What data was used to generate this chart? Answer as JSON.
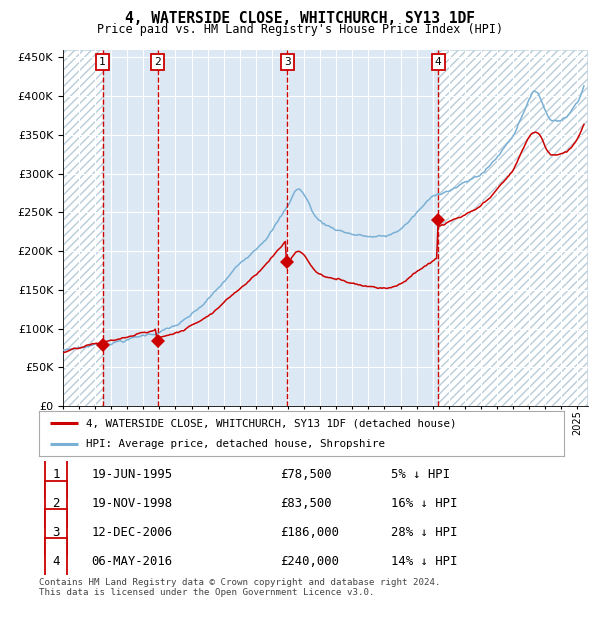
{
  "title": "4, WATERSIDE CLOSE, WHITCHURCH, SY13 1DF",
  "subtitle": "Price paid vs. HM Land Registry's House Price Index (HPI)",
  "sale_dates": [
    "1995-06-19",
    "1998-11-19",
    "2006-12-12",
    "2016-05-06"
  ],
  "sale_prices": [
    78500,
    83500,
    186000,
    240000
  ],
  "sale_labels": [
    "1",
    "2",
    "3",
    "4"
  ],
  "legend_property": "4, WATERSIDE CLOSE, WHITCHURCH, SY13 1DF (detached house)",
  "legend_hpi": "HPI: Average price, detached house, Shropshire",
  "table_rows": [
    [
      "1",
      "19-JUN-1995",
      "£78,500",
      "5% ↓ HPI"
    ],
    [
      "2",
      "19-NOV-1998",
      "£83,500",
      "16% ↓ HPI"
    ],
    [
      "3",
      "12-DEC-2006",
      "£186,000",
      "28% ↓ HPI"
    ],
    [
      "4",
      "06-MAY-2016",
      "£240,000",
      "14% ↓ HPI"
    ]
  ],
  "footer": "Contains HM Land Registry data © Crown copyright and database right 2024.\nThis data is licensed under the Open Government Licence v3.0.",
  "hpi_color": "#7ab0d4",
  "property_color": "#cc0000",
  "sale_marker_color": "#cc0000",
  "dashed_line_color": "#cc0000",
  "background_color": "#ffffff",
  "plot_bg_color": "#dce9f5",
  "ylim": [
    0,
    460000
  ],
  "yticks": [
    0,
    50000,
    100000,
    150000,
    200000,
    250000,
    300000,
    350000,
    400000,
    450000
  ]
}
